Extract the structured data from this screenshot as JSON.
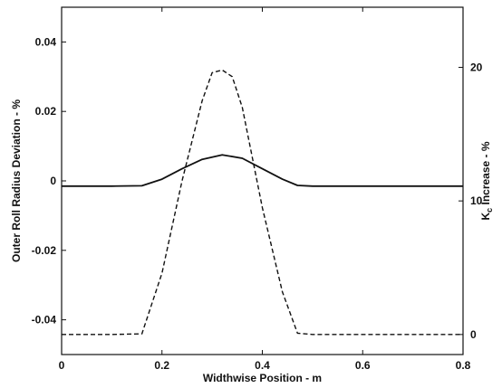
{
  "chart_data": {
    "type": "line",
    "xlabel": "Widthwise Position - m",
    "ylabel_left": "Outer Roll Radius Deviation - %",
    "ylabel_right": "K",
    "ylabel_right_subscript": "c",
    "ylabel_right_suffix": " Increase - %",
    "xlim": [
      0,
      0.8
    ],
    "ylim_left": [
      -0.05,
      0.05
    ],
    "ylim_right": [
      -1.5,
      24.5
    ],
    "x_ticks": [
      {
        "value": 0,
        "label": "0"
      },
      {
        "value": 0.2,
        "label": "0.2"
      },
      {
        "value": 0.4,
        "label": "0.4"
      },
      {
        "value": 0.6,
        "label": "0.6"
      },
      {
        "value": 0.8,
        "label": "0.8"
      }
    ],
    "y_left_ticks": [
      {
        "value": 0.04,
        "label": "0.04"
      },
      {
        "value": 0.02,
        "label": "0.02"
      },
      {
        "value": 0,
        "label": "0"
      },
      {
        "value": -0.02,
        "label": "-0.02"
      },
      {
        "value": -0.04,
        "label": "-0.04"
      }
    ],
    "y_right_ticks": [
      {
        "value": 20,
        "label": "20"
      },
      {
        "value": 10,
        "label": "10"
      },
      {
        "value": 0,
        "label": "0"
      }
    ],
    "series": [
      {
        "axis": "left",
        "style": "solid",
        "x": [
          0.0,
          0.1,
          0.16,
          0.2,
          0.24,
          0.28,
          0.32,
          0.36,
          0.4,
          0.44,
          0.47,
          0.5,
          0.6,
          0.7,
          0.8
        ],
        "y": [
          -0.0015,
          -0.0015,
          -0.0014,
          0.0005,
          0.0035,
          0.0062,
          0.0075,
          0.0065,
          0.0035,
          0.0005,
          -0.0013,
          -0.0015,
          -0.0015,
          -0.0015,
          -0.0015
        ]
      },
      {
        "axis": "right",
        "style": "dashed",
        "x": [
          0.0,
          0.1,
          0.16,
          0.2,
          0.24,
          0.28,
          0.3,
          0.32,
          0.34,
          0.36,
          0.4,
          0.44,
          0.47,
          0.5,
          0.6,
          0.7,
          0.8
        ],
        "y": [
          0,
          0,
          0.05,
          4.6,
          11.5,
          17.5,
          19.6,
          19.8,
          19.3,
          17.0,
          9.5,
          3.2,
          0.1,
          0,
          0,
          0,
          0
        ]
      }
    ]
  }
}
